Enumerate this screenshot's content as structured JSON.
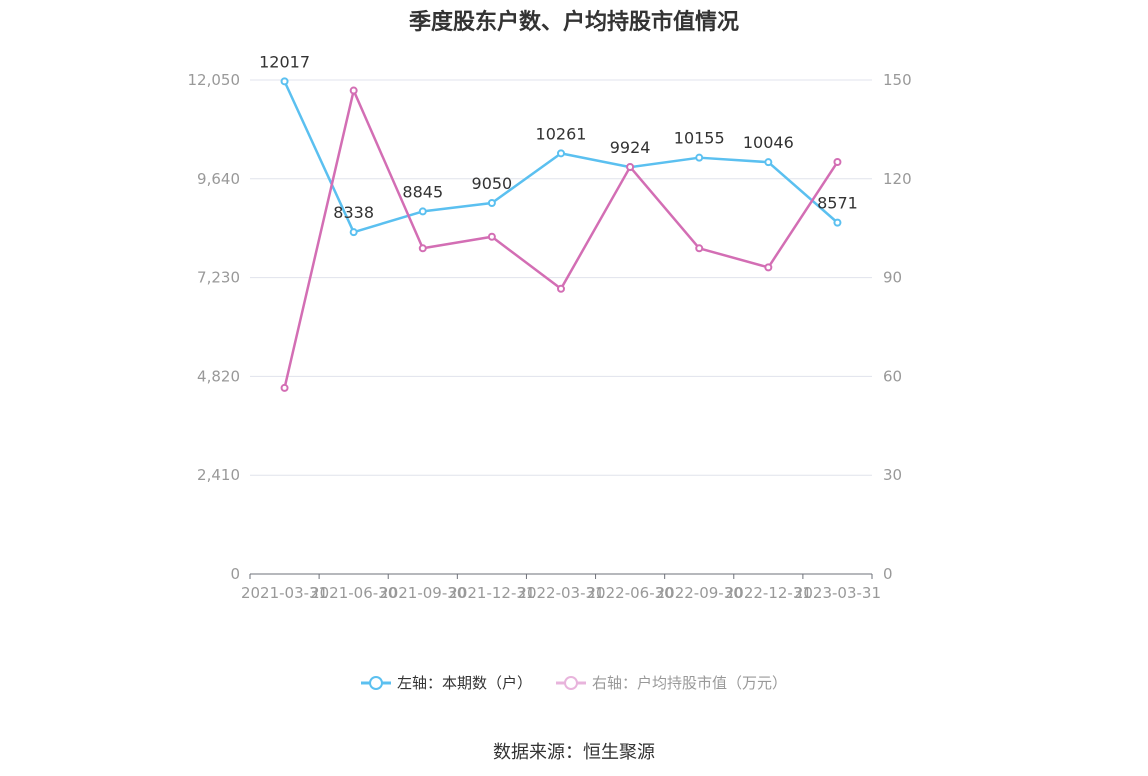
{
  "chart_data": {
    "type": "line",
    "title": "季度股东户数、户均持股市值情况",
    "categories": [
      "2021-03-31",
      "2021-06-30",
      "2021-09-30",
      "2021-12-31",
      "2022-03-31",
      "2022-06-30",
      "2022-09-30",
      "2022-12-31",
      "2023-03-31"
    ],
    "left_axis": {
      "min": 0,
      "max": 12050,
      "ticks": [
        "0",
        "2,410",
        "4,820",
        "7,230",
        "9,640",
        "12,050"
      ],
      "tick_values": [
        0,
        2410,
        4820,
        7230,
        9640,
        12050
      ]
    },
    "right_axis": {
      "min": 0,
      "max": 150,
      "ticks": [
        "0",
        "30",
        "60",
        "90",
        "120",
        "150"
      ],
      "tick_values": [
        0,
        30,
        60,
        90,
        120,
        150
      ]
    },
    "grid": true,
    "legend_position": "bottom",
    "series": [
      {
        "name": "左轴：本期数（户）",
        "axis": "left",
        "color": "#5bc0f0",
        "values": [
          12017,
          8338,
          8845,
          9050,
          10261,
          9924,
          10155,
          10046,
          8571
        ],
        "labels": [
          "12017",
          "8338",
          "8845",
          "9050",
          "10261",
          "9924",
          "10155",
          "10046",
          "8571"
        ]
      },
      {
        "name": "右轴：户均持股市值（万元）",
        "axis": "right",
        "color": "#d36eb4",
        "values": [
          56.5,
          146.8,
          98.9,
          102.4,
          86.6,
          123.6,
          98.9,
          93.1,
          125.1
        ]
      }
    ]
  },
  "source": "数据来源：恒生聚源"
}
